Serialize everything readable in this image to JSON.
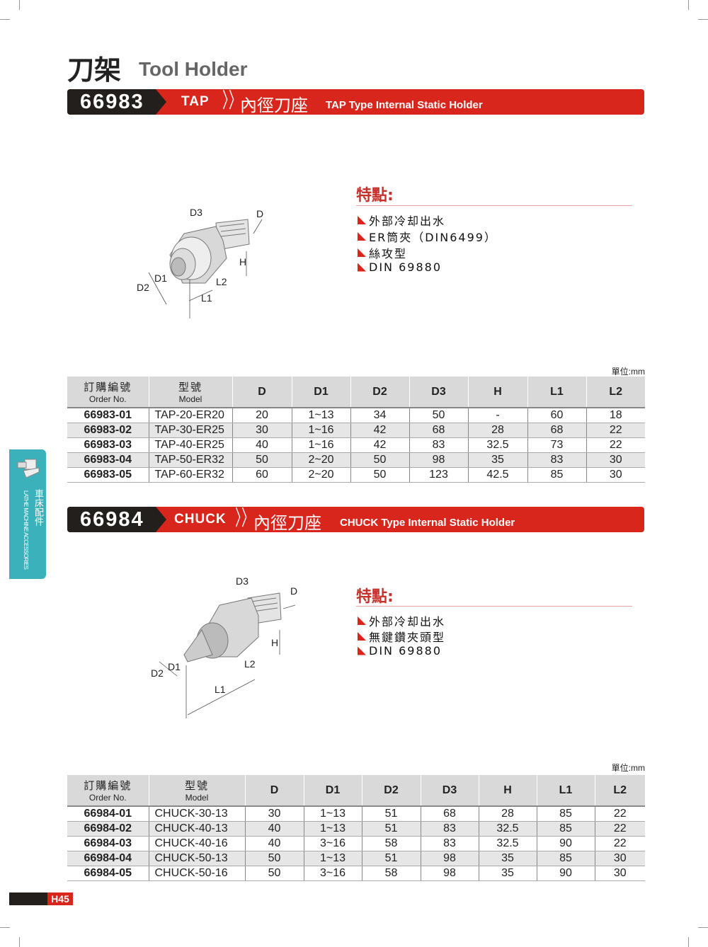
{
  "page": {
    "title_cn": "刀架",
    "title_en": "Tool Holder",
    "page_number": "H45"
  },
  "side_tab": {
    "label_cn": "車床配件",
    "label_en": "LATHE MACHINE ACCESSORIES",
    "icon": "tool-holder-icon",
    "color": "#3bb1bc"
  },
  "colors": {
    "accent": "#d9261c",
    "dark": "#231f1c"
  },
  "sections": [
    {
      "code": "66983",
      "type": "TAP",
      "title_cn": "內徑刀座",
      "title_en": "TAP Type Internal Static Holder",
      "diagram_labels": {
        "D": "D",
        "D1": "D1",
        "D2": "D2",
        "D3": "D3",
        "H": "H",
        "L1": "L1",
        "L2": "L2"
      },
      "features_title": "特點:",
      "features": [
        "外部冷却出水",
        "ER筒夾（DIN6499）",
        "絲攻型",
        "DIN 69880"
      ],
      "unit": "單位:mm",
      "headers": [
        {
          "cn": "訂購編號",
          "en": "Order No."
        },
        {
          "cn": "型號",
          "en": "Model"
        },
        "D",
        "D1",
        "D2",
        "D3",
        "H",
        "L1",
        "L2"
      ],
      "rows": [
        [
          "66983-01",
          "TAP-20-ER20",
          "20",
          "1~13",
          "34",
          "50",
          "-",
          "60",
          "18"
        ],
        [
          "66983-02",
          "TAP-30-ER25",
          "30",
          "1~16",
          "42",
          "68",
          "28",
          "68",
          "22"
        ],
        [
          "66983-03",
          "TAP-40-ER25",
          "40",
          "1~16",
          "42",
          "83",
          "32.5",
          "73",
          "22"
        ],
        [
          "66983-04",
          "TAP-50-ER32",
          "50",
          "2~20",
          "50",
          "98",
          "35",
          "83",
          "30"
        ],
        [
          "66983-05",
          "TAP-60-ER32",
          "60",
          "2~20",
          "50",
          "123",
          "42.5",
          "85",
          "30"
        ]
      ]
    },
    {
      "code": "66984",
      "type": "CHUCK",
      "title_cn": "內徑刀座",
      "title_en": "CHUCK Type Internal Static Holder",
      "diagram_labels": {
        "D": "D",
        "D1": "D1",
        "D2": "D2",
        "D3": "D3",
        "H": "H",
        "L1": "L1",
        "L2": "L2"
      },
      "features_title": "特點:",
      "features": [
        "外部冷却出水",
        "無鍵鑽夾頭型",
        "DIN 69880"
      ],
      "unit": "單位:mm",
      "headers": [
        {
          "cn": "訂購編號",
          "en": "Order No."
        },
        {
          "cn": "型號",
          "en": "Model"
        },
        "D",
        "D1",
        "D2",
        "D3",
        "H",
        "L1",
        "L2"
      ],
      "rows": [
        [
          "66984-01",
          "CHUCK-30-13",
          "30",
          "1~13",
          "51",
          "68",
          "28",
          "85",
          "22"
        ],
        [
          "66984-02",
          "CHUCK-40-13",
          "40",
          "1~13",
          "51",
          "83",
          "32.5",
          "85",
          "22"
        ],
        [
          "66984-03",
          "CHUCK-40-16",
          "40",
          "3~16",
          "58",
          "83",
          "32.5",
          "90",
          "22"
        ],
        [
          "66984-04",
          "CHUCK-50-13",
          "50",
          "1~13",
          "51",
          "98",
          "35",
          "85",
          "30"
        ],
        [
          "66984-05",
          "CHUCK-50-16",
          "50",
          "3~16",
          "58",
          "98",
          "35",
          "90",
          "30"
        ]
      ]
    }
  ]
}
